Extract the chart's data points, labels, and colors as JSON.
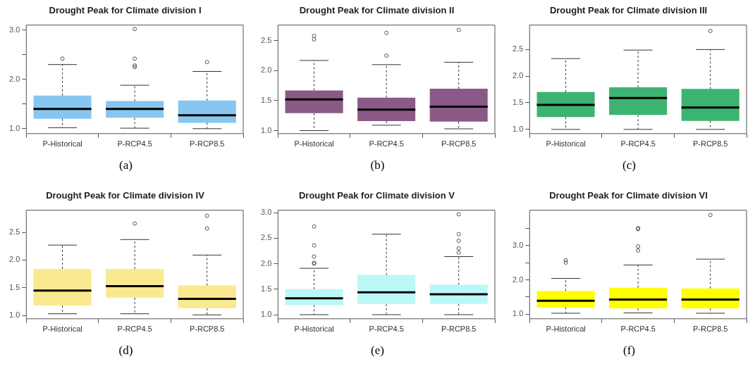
{
  "chart_data": [
    {
      "type": "box",
      "title": "Drought Peak for Climate division I",
      "categories": [
        "P-Historical",
        "P-RCP4.5",
        "P-RCP8.5"
      ],
      "color": "#87c6f0",
      "ylim": [
        0.9,
        3.1
      ],
      "yticks": [
        {
          "value": 1,
          "label": "1.0"
        },
        {
          "value": 1.5,
          "label": null
        },
        {
          "value": 2,
          "label": "2.0"
        },
        {
          "value": 2.5,
          "label": null
        },
        {
          "value": 3,
          "label": "3.0"
        }
      ],
      "annotations": [
        "(a)"
      ],
      "boxes": [
        {
          "low": 1.02,
          "q1": 1.2,
          "median": 1.4,
          "q3": 1.67,
          "high": 2.3,
          "outliers": [
            2.42
          ]
        },
        {
          "low": 1.01,
          "q1": 1.22,
          "median": 1.4,
          "q3": 1.56,
          "high": 1.88,
          "outliers": [
            2.25,
            2.28,
            2.42,
            3.02
          ]
        },
        {
          "low": 1.0,
          "q1": 1.12,
          "median": 1.27,
          "q3": 1.57,
          "high": 2.16,
          "outliers": [
            2.35
          ]
        }
      ]
    },
    {
      "type": "box",
      "title": "Drought Peak for Climate division II",
      "categories": [
        "P-Historical",
        "P-RCP4.5",
        "P-RCP8.5"
      ],
      "color": "#8a5a86",
      "ylim": [
        0.95,
        2.76
      ],
      "yticks": [
        {
          "value": 1,
          "label": "1.0"
        },
        {
          "value": 1.5,
          "label": "1.5"
        },
        {
          "value": 2,
          "label": "2.0"
        },
        {
          "value": 2.5,
          "label": "2.5"
        }
      ],
      "annotations": [
        "(b)"
      ],
      "boxes": [
        {
          "low": 1.0,
          "q1": 1.29,
          "median": 1.52,
          "q3": 1.67,
          "high": 2.17,
          "outliers": [
            2.52,
            2.58
          ]
        },
        {
          "low": 1.09,
          "q1": 1.16,
          "median": 1.35,
          "q3": 1.55,
          "high": 2.1,
          "outliers": [
            2.25,
            2.63
          ]
        },
        {
          "low": 1.03,
          "q1": 1.15,
          "median": 1.4,
          "q3": 1.7,
          "high": 2.14,
          "outliers": [
            2.68
          ]
        }
      ]
    },
    {
      "type": "box",
      "title": "Drought Peak for Climate division III",
      "categories": [
        "P-Historical",
        "P-RCP4.5",
        "P-RCP8.5"
      ],
      "color": "#3cb371",
      "ylim": [
        0.92,
        2.96
      ],
      "yticks": [
        {
          "value": 1,
          "label": "1.0"
        },
        {
          "value": 1.5,
          "label": "1.5"
        },
        {
          "value": 2,
          "label": "2.0"
        },
        {
          "value": 2.5,
          "label": "2.5"
        }
      ],
      "annotations": [
        "(c)"
      ],
      "boxes": [
        {
          "low": 1.0,
          "q1": 1.23,
          "median": 1.46,
          "q3": 1.7,
          "high": 2.33
        },
        {
          "low": 1.0,
          "q1": 1.27,
          "median": 1.59,
          "q3": 1.79,
          "high": 2.49
        },
        {
          "low": 1.0,
          "q1": 1.16,
          "median": 1.41,
          "q3": 1.76,
          "high": 2.5,
          "outliers": [
            2.85
          ]
        }
      ]
    },
    {
      "type": "box",
      "title": "Drought Peak for Climate division IV",
      "categories": [
        "P-Historical",
        "P-RCP4.5",
        "P-RCP8.5"
      ],
      "color": "#fbe98f",
      "ylim": [
        0.94,
        2.9
      ],
      "yticks": [
        {
          "value": 1,
          "label": "1.0"
        },
        {
          "value": 1.5,
          "label": "1.5"
        },
        {
          "value": 2,
          "label": "2.0"
        },
        {
          "value": 2.5,
          "label": "2.5"
        }
      ],
      "annotations": [
        "(d)"
      ],
      "boxes": [
        {
          "low": 1.03,
          "q1": 1.18,
          "median": 1.45,
          "q3": 1.84,
          "high": 2.27
        },
        {
          "low": 1.03,
          "q1": 1.32,
          "median": 1.53,
          "q3": 1.84,
          "high": 2.37,
          "outliers": [
            2.66
          ]
        },
        {
          "low": 1.01,
          "q1": 1.13,
          "median": 1.3,
          "q3": 1.54,
          "high": 2.09,
          "outliers": [
            2.57,
            2.8
          ]
        }
      ]
    },
    {
      "type": "box",
      "title": "Drought Peak for Climate division V",
      "categories": [
        "P-Historical",
        "P-RCP4.5",
        "P-RCP8.5"
      ],
      "color": "#bbf7f7",
      "ylim": [
        0.92,
        3.05
      ],
      "yticks": [
        {
          "value": 1,
          "label": "1.0"
        },
        {
          "value": 1.5,
          "label": "1.5"
        },
        {
          "value": 2,
          "label": "2.0"
        },
        {
          "value": 2.5,
          "label": "2.5"
        },
        {
          "value": 3,
          "label": "3.0"
        }
      ],
      "annotations": [
        "(e)"
      ],
      "boxes": [
        {
          "low": 1.0,
          "q1": 1.19,
          "median": 1.32,
          "q3": 1.5,
          "high": 1.91,
          "outliers": [
            2.0,
            2.02,
            2.14,
            2.36,
            2.73
          ]
        },
        {
          "low": 1.0,
          "q1": 1.21,
          "median": 1.44,
          "q3": 1.78,
          "high": 2.58
        },
        {
          "low": 1.0,
          "q1": 1.21,
          "median": 1.4,
          "q3": 1.59,
          "high": 2.14,
          "outliers": [
            2.22,
            2.3,
            2.45,
            2.58,
            2.97
          ]
        }
      ]
    },
    {
      "type": "box",
      "title": "Drought Peak for Climate division VI",
      "categories": [
        "P-Historical",
        "P-RCP4.5",
        "P-RCP8.5"
      ],
      "color": "#ffff00",
      "ylim": [
        0.87,
        4.02
      ],
      "yticks": [
        {
          "value": 1,
          "label": "1.0"
        },
        {
          "value": 1.5,
          "label": null
        },
        {
          "value": 2,
          "label": "2.0"
        },
        {
          "value": 2.5,
          "label": null
        },
        {
          "value": 3,
          "label": "3.0"
        },
        {
          "value": 3.5,
          "label": null
        }
      ],
      "annotations": [
        "(f)"
      ],
      "boxes": [
        {
          "low": 1.03,
          "q1": 1.2,
          "median": 1.39,
          "q3": 1.68,
          "high": 2.04,
          "outliers": [
            2.5,
            2.57
          ]
        },
        {
          "low": 1.04,
          "q1": 1.17,
          "median": 1.43,
          "q3": 1.77,
          "high": 2.43,
          "outliers": [
            2.85,
            2.97,
            3.47,
            3.5
          ]
        },
        {
          "low": 1.03,
          "q1": 1.17,
          "median": 1.43,
          "q3": 1.75,
          "high": 2.6,
          "outliers": [
            3.88
          ]
        }
      ]
    }
  ]
}
